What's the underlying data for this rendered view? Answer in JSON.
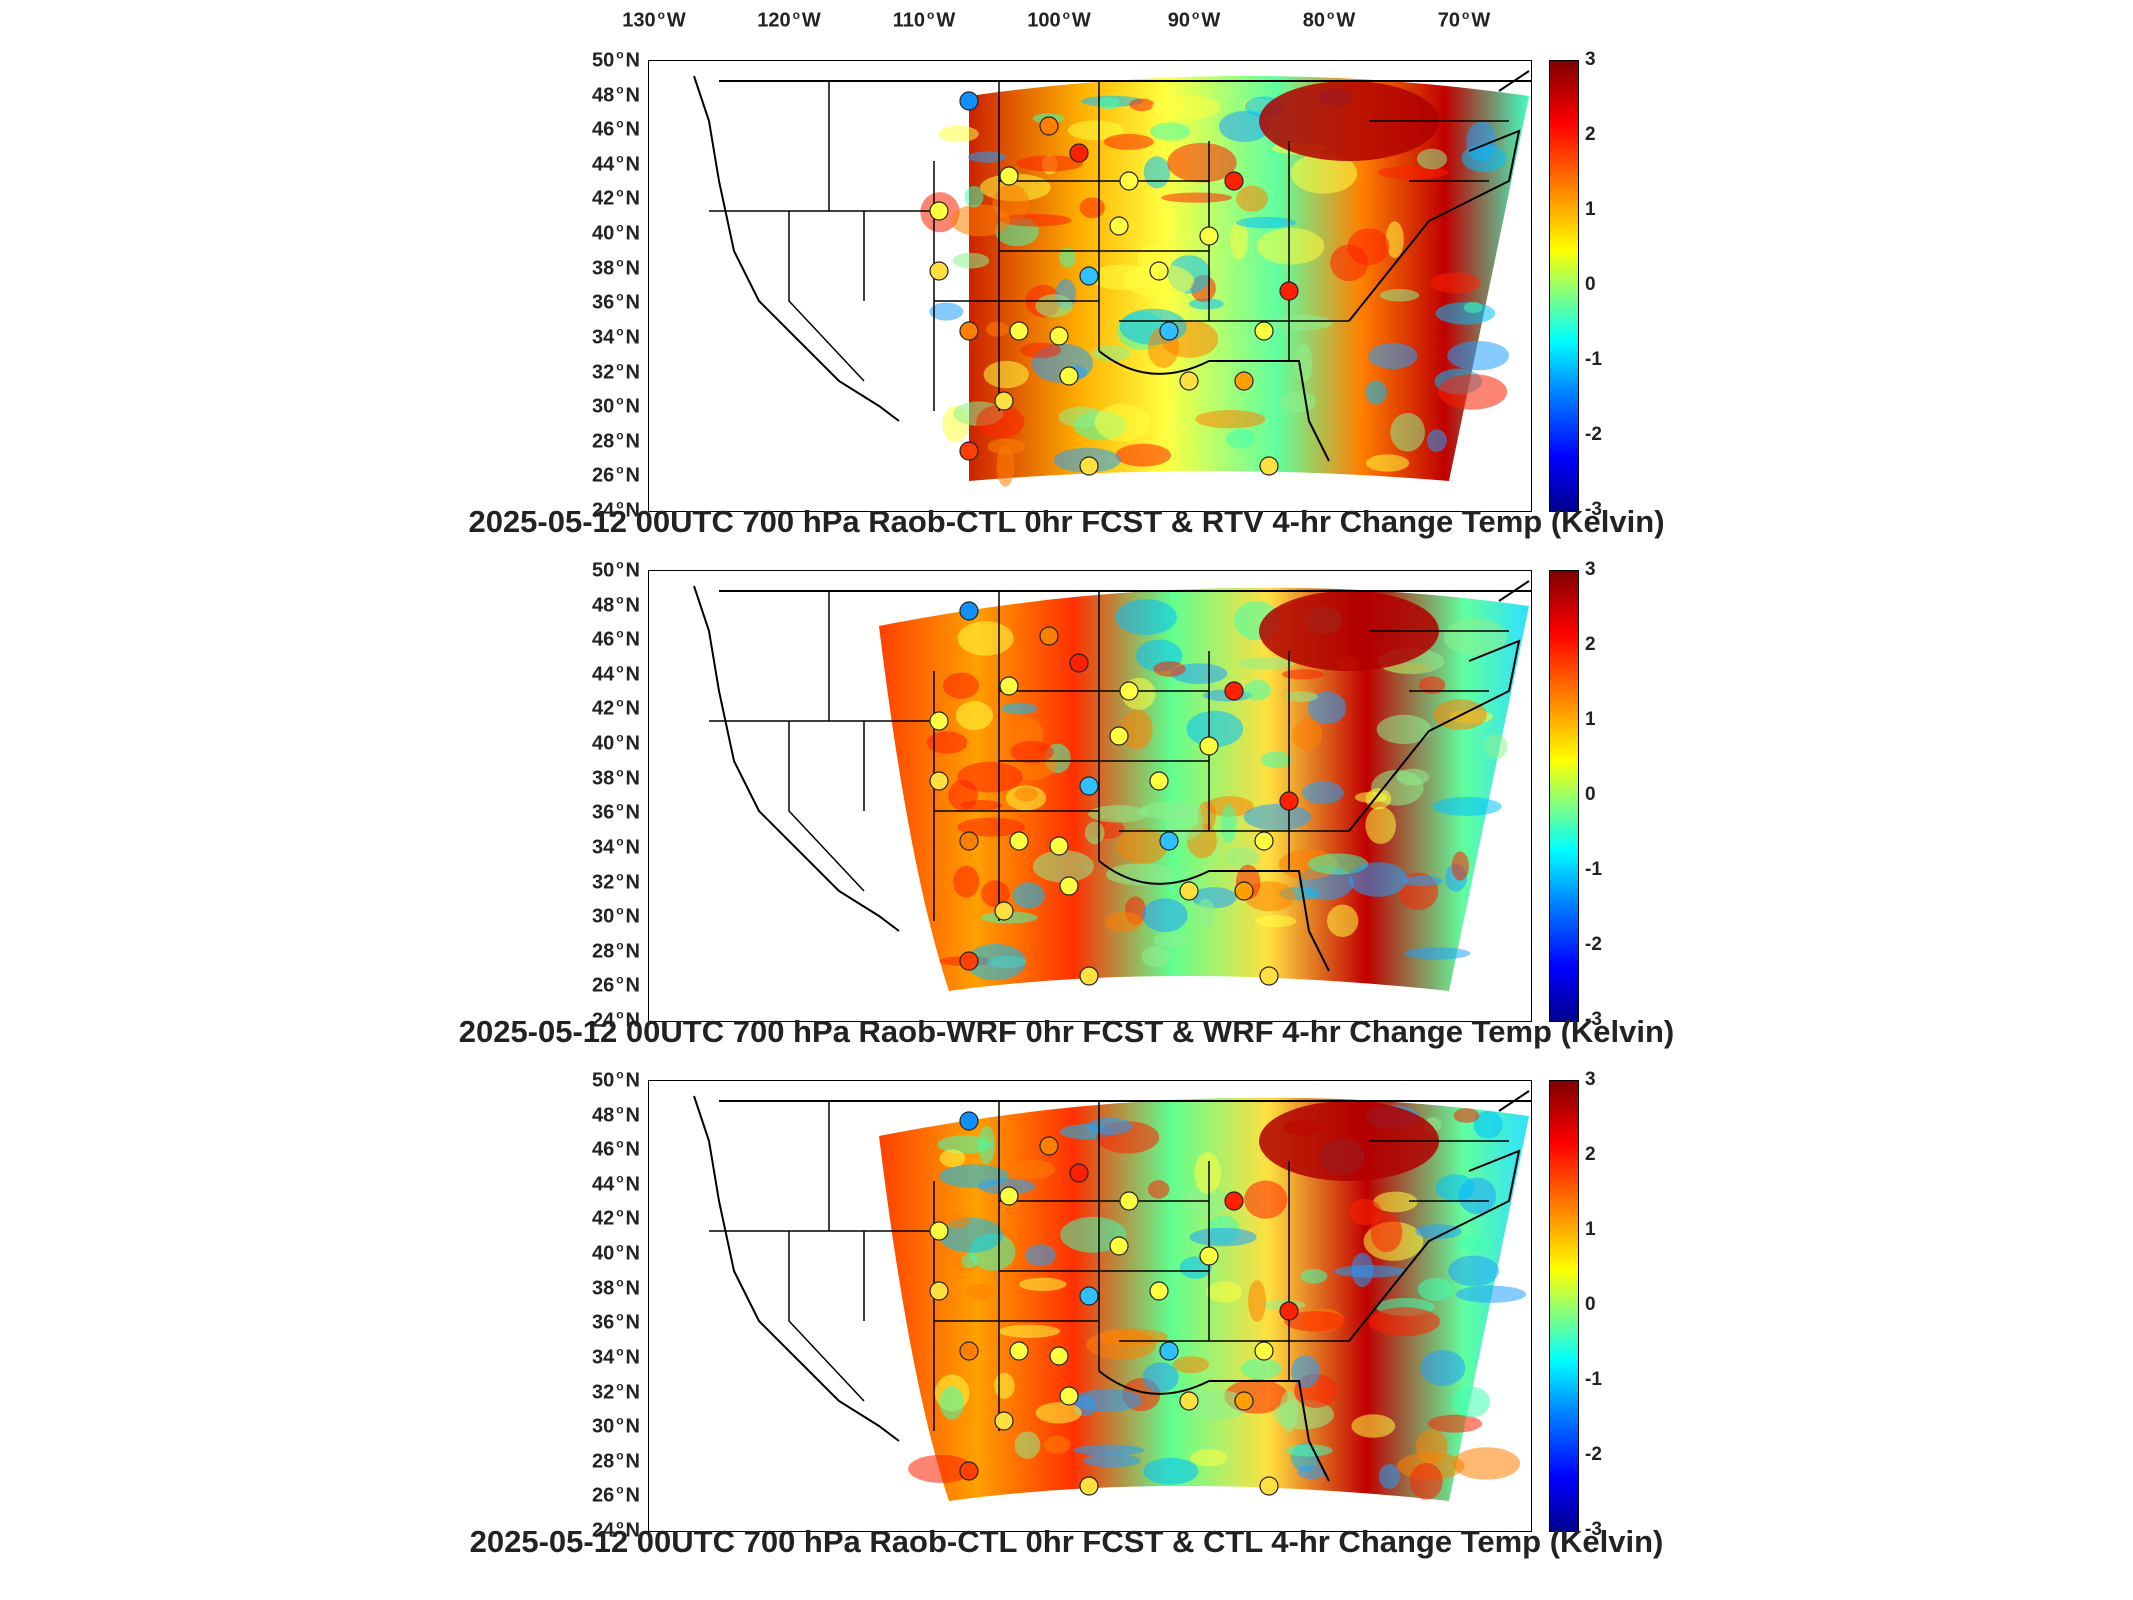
{
  "lon_labels": [
    "130",
    "120",
    "110",
    "100",
    "90",
    "80",
    "70"
  ],
  "lon_suffix": "W",
  "lat_labels": [
    "50",
    "48",
    "46",
    "44",
    "42",
    "40",
    "38",
    "36",
    "34",
    "32",
    "30",
    "28",
    "26",
    "24"
  ],
  "lat_suffix": "N",
  "colorbar_ticks": [
    "3",
    "2",
    "1",
    "0",
    "-1",
    "-2",
    "-3"
  ],
  "colorbar_range": [
    -3,
    3
  ],
  "colors": {
    "high": "#800000",
    "mid": "#80ff80",
    "low": "#00008f"
  },
  "panels": [
    {
      "title": "2025-05-12 00UTC 700 hPa Raob-CTL 0hr FCST & RTV 4-hr Change Temp (Kelvin)",
      "variant": "rtv"
    },
    {
      "title": "2025-05-12 00UTC 700 hPa Raob-WRF 0hr FCST & WRF 4-hr Change Temp (Kelvin)",
      "variant": "wrf"
    },
    {
      "title": "2025-05-12 00UTC 700 hPa Raob-CTL 0hr FCST & CTL 4-hr Change Temp (Kelvin)",
      "variant": "ctl"
    }
  ]
}
